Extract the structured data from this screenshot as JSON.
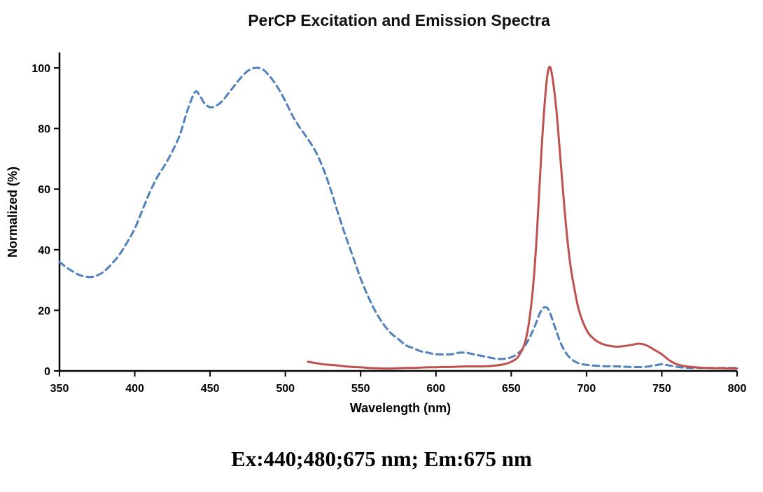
{
  "chart_data": {
    "type": "line",
    "title": "PerCP Excitation and Emission Spectra",
    "xlabel": "Wavelength (nm)",
    "ylabel": "Normalized (%)",
    "annotation": "Ex:440;480;675 nm; Em:675 nm",
    "xlim": [
      350,
      800
    ],
    "ylim": [
      0,
      100
    ],
    "x_ticks": [
      350,
      400,
      450,
      500,
      550,
      600,
      650,
      700,
      750,
      800
    ],
    "y_ticks": [
      0,
      20,
      40,
      60,
      80,
      100
    ],
    "grid": false,
    "legend": "none",
    "axis_color": "#000000",
    "series": [
      {
        "name": "Excitation",
        "style": "dashed",
        "color": "#4F81BD",
        "points": [
          [
            350,
            36
          ],
          [
            355,
            34
          ],
          [
            360,
            32.5
          ],
          [
            364,
            31.5
          ],
          [
            370,
            31
          ],
          [
            375,
            31.5
          ],
          [
            380,
            33
          ],
          [
            385,
            35.5
          ],
          [
            390,
            38.5
          ],
          [
            395,
            42.5
          ],
          [
            400,
            47
          ],
          [
            405,
            53
          ],
          [
            410,
            59
          ],
          [
            415,
            64
          ],
          [
            420,
            68
          ],
          [
            425,
            72.5
          ],
          [
            430,
            78
          ],
          [
            435,
            86
          ],
          [
            440,
            92
          ],
          [
            443,
            91
          ],
          [
            446,
            88.5
          ],
          [
            450,
            87
          ],
          [
            454,
            87.5
          ],
          [
            458,
            89
          ],
          [
            462,
            91.5
          ],
          [
            466,
            94
          ],
          [
            470,
            96.5
          ],
          [
            475,
            99
          ],
          [
            480,
            100
          ],
          [
            485,
            99.5
          ],
          [
            490,
            97
          ],
          [
            495,
            93.5
          ],
          [
            500,
            89
          ],
          [
            505,
            84
          ],
          [
            510,
            80
          ],
          [
            515,
            76.5
          ],
          [
            520,
            72.5
          ],
          [
            525,
            67
          ],
          [
            530,
            60
          ],
          [
            535,
            52
          ],
          [
            540,
            44.5
          ],
          [
            545,
            37.5
          ],
          [
            550,
            30.5
          ],
          [
            555,
            24.5
          ],
          [
            560,
            19.5
          ],
          [
            565,
            15.5
          ],
          [
            570,
            12.5
          ],
          [
            575,
            10.5
          ],
          [
            580,
            8.5
          ],
          [
            585,
            7.5
          ],
          [
            590,
            6.5
          ],
          [
            595,
            6
          ],
          [
            600,
            5.5
          ],
          [
            610,
            5.5
          ],
          [
            615,
            6
          ],
          [
            620,
            6
          ],
          [
            625,
            5.5
          ],
          [
            630,
            5
          ],
          [
            635,
            4.5
          ],
          [
            640,
            4
          ],
          [
            645,
            4
          ],
          [
            650,
            4.5
          ],
          [
            655,
            6
          ],
          [
            660,
            9
          ],
          [
            665,
            14
          ],
          [
            669,
            19
          ],
          [
            672,
            21
          ],
          [
            675,
            20
          ],
          [
            679,
            14.5
          ],
          [
            683,
            9
          ],
          [
            687,
            5.5
          ],
          [
            691,
            3.5
          ],
          [
            695,
            2.5
          ],
          [
            700,
            2
          ],
          [
            710,
            1.6
          ],
          [
            720,
            1.5
          ],
          [
            730,
            1.3
          ],
          [
            738,
            1.3
          ],
          [
            745,
            1.8
          ],
          [
            750,
            2.2
          ],
          [
            755,
            1.8
          ],
          [
            762,
            1.2
          ],
          [
            770,
            1
          ],
          [
            780,
            1
          ],
          [
            790,
            1
          ],
          [
            800,
            1
          ]
        ]
      },
      {
        "name": "Emission",
        "style": "solid",
        "color": "#C0504D",
        "points": [
          [
            515,
            3
          ],
          [
            520,
            2.6
          ],
          [
            525,
            2.2
          ],
          [
            530,
            2
          ],
          [
            535,
            1.8
          ],
          [
            540,
            1.5
          ],
          [
            545,
            1.3
          ],
          [
            550,
            1.2
          ],
          [
            555,
            1
          ],
          [
            560,
            0.9
          ],
          [
            565,
            0.8
          ],
          [
            570,
            0.8
          ],
          [
            575,
            0.9
          ],
          [
            580,
            1
          ],
          [
            585,
            1
          ],
          [
            590,
            1.1
          ],
          [
            595,
            1.2
          ],
          [
            600,
            1.2
          ],
          [
            605,
            1.3
          ],
          [
            610,
            1.3
          ],
          [
            615,
            1.4
          ],
          [
            620,
            1.5
          ],
          [
            625,
            1.5
          ],
          [
            630,
            1.5
          ],
          [
            635,
            1.6
          ],
          [
            640,
            1.8
          ],
          [
            645,
            2.2
          ],
          [
            650,
            3
          ],
          [
            655,
            5
          ],
          [
            660,
            11
          ],
          [
            664,
            25
          ],
          [
            667,
            45
          ],
          [
            670,
            72
          ],
          [
            673,
            93
          ],
          [
            675,
            100
          ],
          [
            677,
            98
          ],
          [
            680,
            86
          ],
          [
            683,
            68
          ],
          [
            686,
            50
          ],
          [
            689,
            36
          ],
          [
            692,
            27
          ],
          [
            695,
            20
          ],
          [
            700,
            13.5
          ],
          [
            705,
            10.5
          ],
          [
            710,
            9
          ],
          [
            715,
            8.3
          ],
          [
            720,
            8
          ],
          [
            725,
            8.2
          ],
          [
            730,
            8.6
          ],
          [
            735,
            9
          ],
          [
            740,
            8.4
          ],
          [
            745,
            7
          ],
          [
            750,
            5.5
          ],
          [
            755,
            3.5
          ],
          [
            760,
            2.2
          ],
          [
            765,
            1.6
          ],
          [
            770,
            1.3
          ],
          [
            775,
            1.1
          ],
          [
            780,
            1
          ],
          [
            785,
            0.9
          ],
          [
            790,
            0.9
          ],
          [
            795,
            0.8
          ],
          [
            800,
            0.8
          ]
        ]
      }
    ]
  }
}
